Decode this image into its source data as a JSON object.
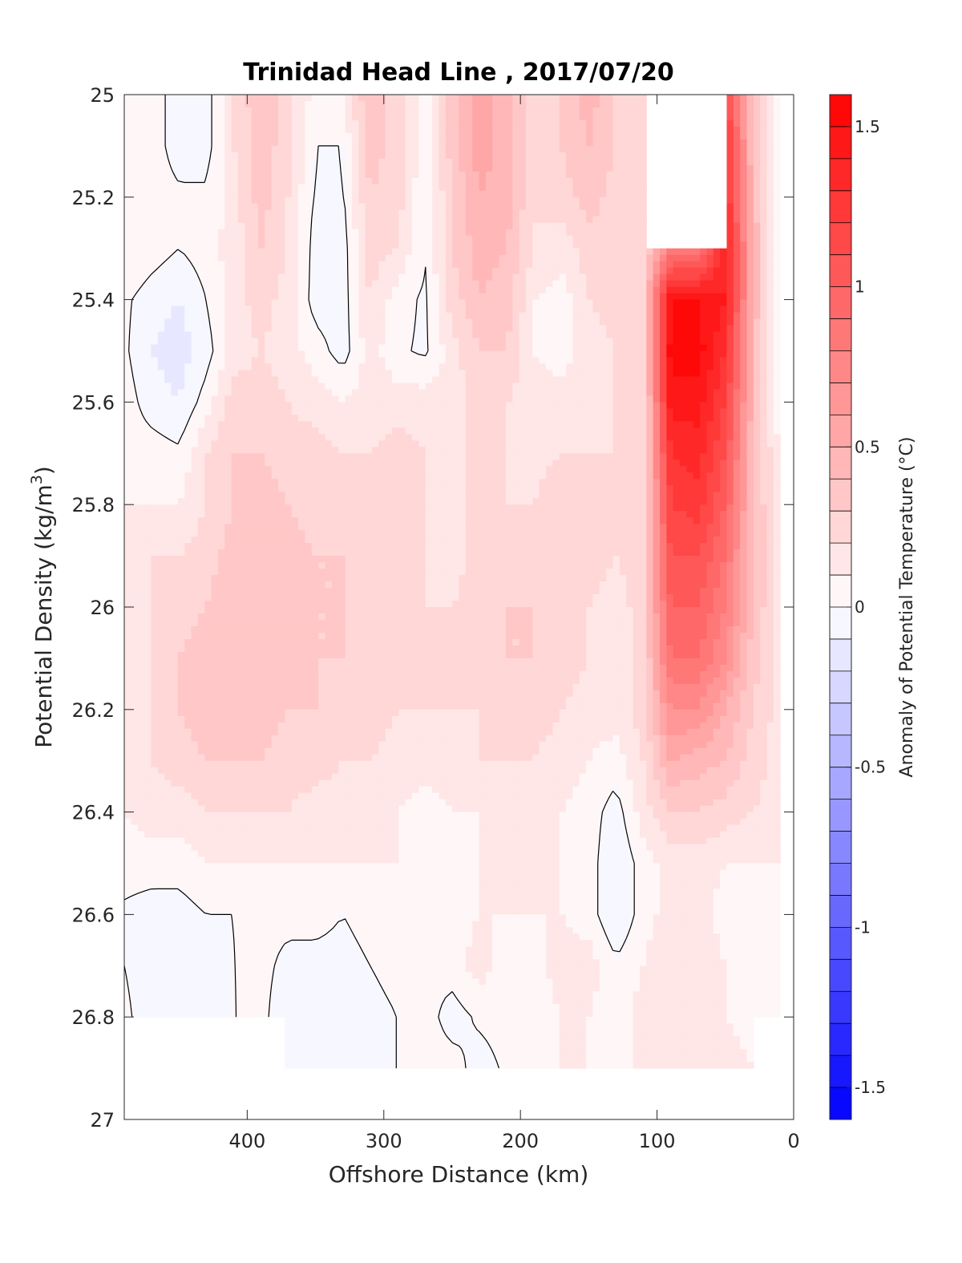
{
  "chart_data": {
    "type": "heatmap",
    "title": "Trinidad Head Line , 2017/07/20",
    "xlabel": "Offshore Distance (km)",
    "ylabel_main": "Potential Density (kg/m",
    "ylabel_sup": "3",
    "ylabel_end": ")",
    "colorbar_label": "Anomaly of Potential Temperature (°C)",
    "xlim": [
      490,
      0
    ],
    "ylim": [
      25.0,
      27.0
    ],
    "x_axis_reversed": true,
    "y_axis_reversed": true,
    "x_ticks": [
      400,
      300,
      200,
      100,
      0
    ],
    "y_ticks": [
      25,
      25.2,
      25.4,
      25.6,
      25.8,
      26,
      26.2,
      26.4,
      26.6,
      26.8,
      27
    ],
    "clim": [
      -1.6,
      1.6
    ],
    "colorbar_ticks": [
      1.5,
      1,
      0.5,
      0,
      -0.5,
      -1,
      -1.5
    ],
    "contour_levels_per_band": 32,
    "colormap": {
      "negative": "#0000ff",
      "zero": "#ffffff",
      "positive": "#ff0000"
    },
    "data_extent": {
      "x_min": 10,
      "x_max": 490,
      "y_max": 26.9
    },
    "grid": false,
    "annotation": "black contour lines mark the 0 °C anomaly",
    "field": {
      "x": [
        490,
        470,
        450,
        430,
        410,
        390,
        370,
        350,
        330,
        310,
        290,
        270,
        250,
        230,
        210,
        190,
        170,
        150,
        130,
        110,
        90,
        70,
        50,
        30,
        10
      ],
      "y": [
        25.0,
        25.1,
        25.2,
        25.3,
        25.4,
        25.5,
        25.6,
        25.7,
        25.8,
        25.9,
        26.0,
        26.1,
        26.2,
        26.3,
        26.4,
        26.5,
        26.6,
        26.7,
        26.8,
        26.9
      ],
      "z": [
        [
          0.1,
          0.05,
          -0.05,
          -0.05,
          0.2,
          0.4,
          0.25,
          0.05,
          0.1,
          0.4,
          0.25,
          0.05,
          0.35,
          0.55,
          0.45,
          0.25,
          0.3,
          0.45,
          0.3,
          0.2,
          null,
          null,
          1.2,
          0.4,
          0.05
        ],
        [
          0.1,
          0.05,
          -0.05,
          -0.05,
          0.2,
          0.35,
          0.25,
          0.0,
          0.0,
          0.35,
          0.25,
          0.05,
          0.35,
          0.55,
          0.45,
          0.25,
          0.3,
          0.4,
          0.3,
          0.2,
          null,
          null,
          1.3,
          0.4,
          0.05
        ],
        [
          0.1,
          0.05,
          0.02,
          0.02,
          0.15,
          0.35,
          0.2,
          -0.02,
          -0.02,
          0.3,
          0.25,
          0.0,
          0.3,
          0.5,
          0.45,
          0.2,
          0.25,
          0.35,
          0.25,
          0.2,
          null,
          null,
          1.35,
          0.45,
          0.02
        ],
        [
          0.1,
          0.05,
          0.0,
          0.05,
          0.15,
          0.3,
          0.2,
          -0.05,
          -0.05,
          0.25,
          0.2,
          0.0,
          0.3,
          0.45,
          0.4,
          0.2,
          0.15,
          0.25,
          0.25,
          0.25,
          0.8,
          0.8,
          1.4,
          0.5,
          -0.05
        ],
        [
          0.02,
          -0.05,
          -0.1,
          0.0,
          0.15,
          0.25,
          0.15,
          -0.05,
          -0.05,
          0.2,
          0.05,
          -0.02,
          0.25,
          0.4,
          0.35,
          0.1,
          0.05,
          0.2,
          0.25,
          0.3,
          1.5,
          1.5,
          1.4,
          0.5,
          -0.05
        ],
        [
          0.02,
          -0.1,
          -0.15,
          -0.05,
          0.15,
          0.2,
          0.15,
          0.05,
          -0.05,
          0.15,
          0.02,
          -0.02,
          0.15,
          0.3,
          0.3,
          0.1,
          0.05,
          0.15,
          0.2,
          0.25,
          1.55,
          1.55,
          1.3,
          0.45,
          -0.05
        ],
        [
          0.05,
          -0.05,
          -0.1,
          0.05,
          0.25,
          0.25,
          0.2,
          0.15,
          0.1,
          0.15,
          0.15,
          0.15,
          0.15,
          0.25,
          0.2,
          0.15,
          0.15,
          0.15,
          0.2,
          0.2,
          1.45,
          1.45,
          1.2,
          0.45,
          0.0
        ],
        [
          0.05,
          0.05,
          0.02,
          0.2,
          0.3,
          0.3,
          0.25,
          0.25,
          0.2,
          0.2,
          0.25,
          0.2,
          0.15,
          0.25,
          0.2,
          0.15,
          0.2,
          0.2,
          0.2,
          0.2,
          1.3,
          1.35,
          1.1,
          0.4,
          0.1
        ],
        [
          0.1,
          0.1,
          0.1,
          0.2,
          0.3,
          0.35,
          0.3,
          0.25,
          0.2,
          0.2,
          0.2,
          0.2,
          0.15,
          0.25,
          0.2,
          0.2,
          0.3,
          0.25,
          0.2,
          0.2,
          1.2,
          1.25,
          1.0,
          0.4,
          0.15
        ],
        [
          0.15,
          0.2,
          0.2,
          0.25,
          0.35,
          0.4,
          0.35,
          0.3,
          0.3,
          0.25,
          0.2,
          0.2,
          0.15,
          0.25,
          0.25,
          0.25,
          0.3,
          0.25,
          0.2,
          0.25,
          1.1,
          1.1,
          0.9,
          0.4,
          0.15
        ],
        [
          0.15,
          0.2,
          0.25,
          0.3,
          0.4,
          0.4,
          0.35,
          0.3,
          0.3,
          0.25,
          0.2,
          0.2,
          0.2,
          0.25,
          0.3,
          0.3,
          0.3,
          0.2,
          0.15,
          0.25,
          1.0,
          1.0,
          0.8,
          0.4,
          0.15
        ],
        [
          0.15,
          0.2,
          0.3,
          0.35,
          0.35,
          0.35,
          0.35,
          0.3,
          0.3,
          0.25,
          0.25,
          0.2,
          0.2,
          0.25,
          0.3,
          0.3,
          0.25,
          0.2,
          0.15,
          0.25,
          0.9,
          0.9,
          0.7,
          0.35,
          0.15
        ],
        [
          0.15,
          0.2,
          0.3,
          0.35,
          0.35,
          0.35,
          0.3,
          0.3,
          0.25,
          0.25,
          0.2,
          0.2,
          0.2,
          0.2,
          0.25,
          0.25,
          0.2,
          0.15,
          0.15,
          0.25,
          0.7,
          0.7,
          0.5,
          0.3,
          0.15
        ],
        [
          0.15,
          0.2,
          0.25,
          0.3,
          0.3,
          0.3,
          0.25,
          0.25,
          0.2,
          0.2,
          0.15,
          0.15,
          0.15,
          0.2,
          0.2,
          0.2,
          0.15,
          0.1,
          0.05,
          0.2,
          0.5,
          0.45,
          0.4,
          0.25,
          0.15
        ],
        [
          0.1,
          0.15,
          0.15,
          0.2,
          0.2,
          0.2,
          0.2,
          0.15,
          0.15,
          0.15,
          0.1,
          0.05,
          0.1,
          0.1,
          0.1,
          0.1,
          0.1,
          0.05,
          -0.05,
          0.15,
          0.3,
          0.3,
          0.25,
          0.2,
          0.15
        ],
        [
          0.05,
          0.05,
          0.05,
          0.1,
          0.1,
          0.1,
          0.1,
          0.1,
          0.1,
          0.1,
          0.1,
          0.05,
          0.05,
          0.1,
          0.1,
          0.1,
          0.1,
          0.05,
          -0.1,
          0.05,
          0.15,
          0.15,
          0.1,
          0.1,
          0.1
        ],
        [
          -0.02,
          -0.05,
          -0.05,
          0.0,
          0.0,
          0.02,
          0.02,
          0.02,
          0.0,
          0.02,
          0.05,
          0.05,
          0.05,
          0.1,
          0.1,
          0.1,
          0.1,
          0.05,
          -0.1,
          0.05,
          0.15,
          0.15,
          0.05,
          0.02,
          0.05
        ],
        [
          0.0,
          -0.05,
          -0.1,
          -0.05,
          0.0,
          0.02,
          -0.02,
          -0.02,
          -0.02,
          0.0,
          0.02,
          0.02,
          0.05,
          0.15,
          0.05,
          0.05,
          0.15,
          0.15,
          0.02,
          0.1,
          0.2,
          0.2,
          0.1,
          0.05,
          0.05
        ],
        [
          0.02,
          -0.05,
          -0.1,
          -0.1,
          0.0,
          0.02,
          -0.05,
          -0.1,
          -0.05,
          -0.02,
          0.0,
          0.05,
          -0.05,
          0.02,
          0.05,
          0.05,
          0.1,
          0.1,
          0.05,
          0.15,
          0.2,
          0.15,
          0.1,
          0.05,
          0.05
        ],
        [
          null,
          null,
          null,
          null,
          null,
          null,
          -0.02,
          -0.05,
          -0.05,
          -0.02,
          0.0,
          0.05,
          0.05,
          -0.05,
          0.02,
          0.05,
          0.1,
          0.1,
          0.05,
          0.15,
          0.2,
          0.15,
          0.15,
          0.1,
          null
        ]
      ]
    }
  }
}
